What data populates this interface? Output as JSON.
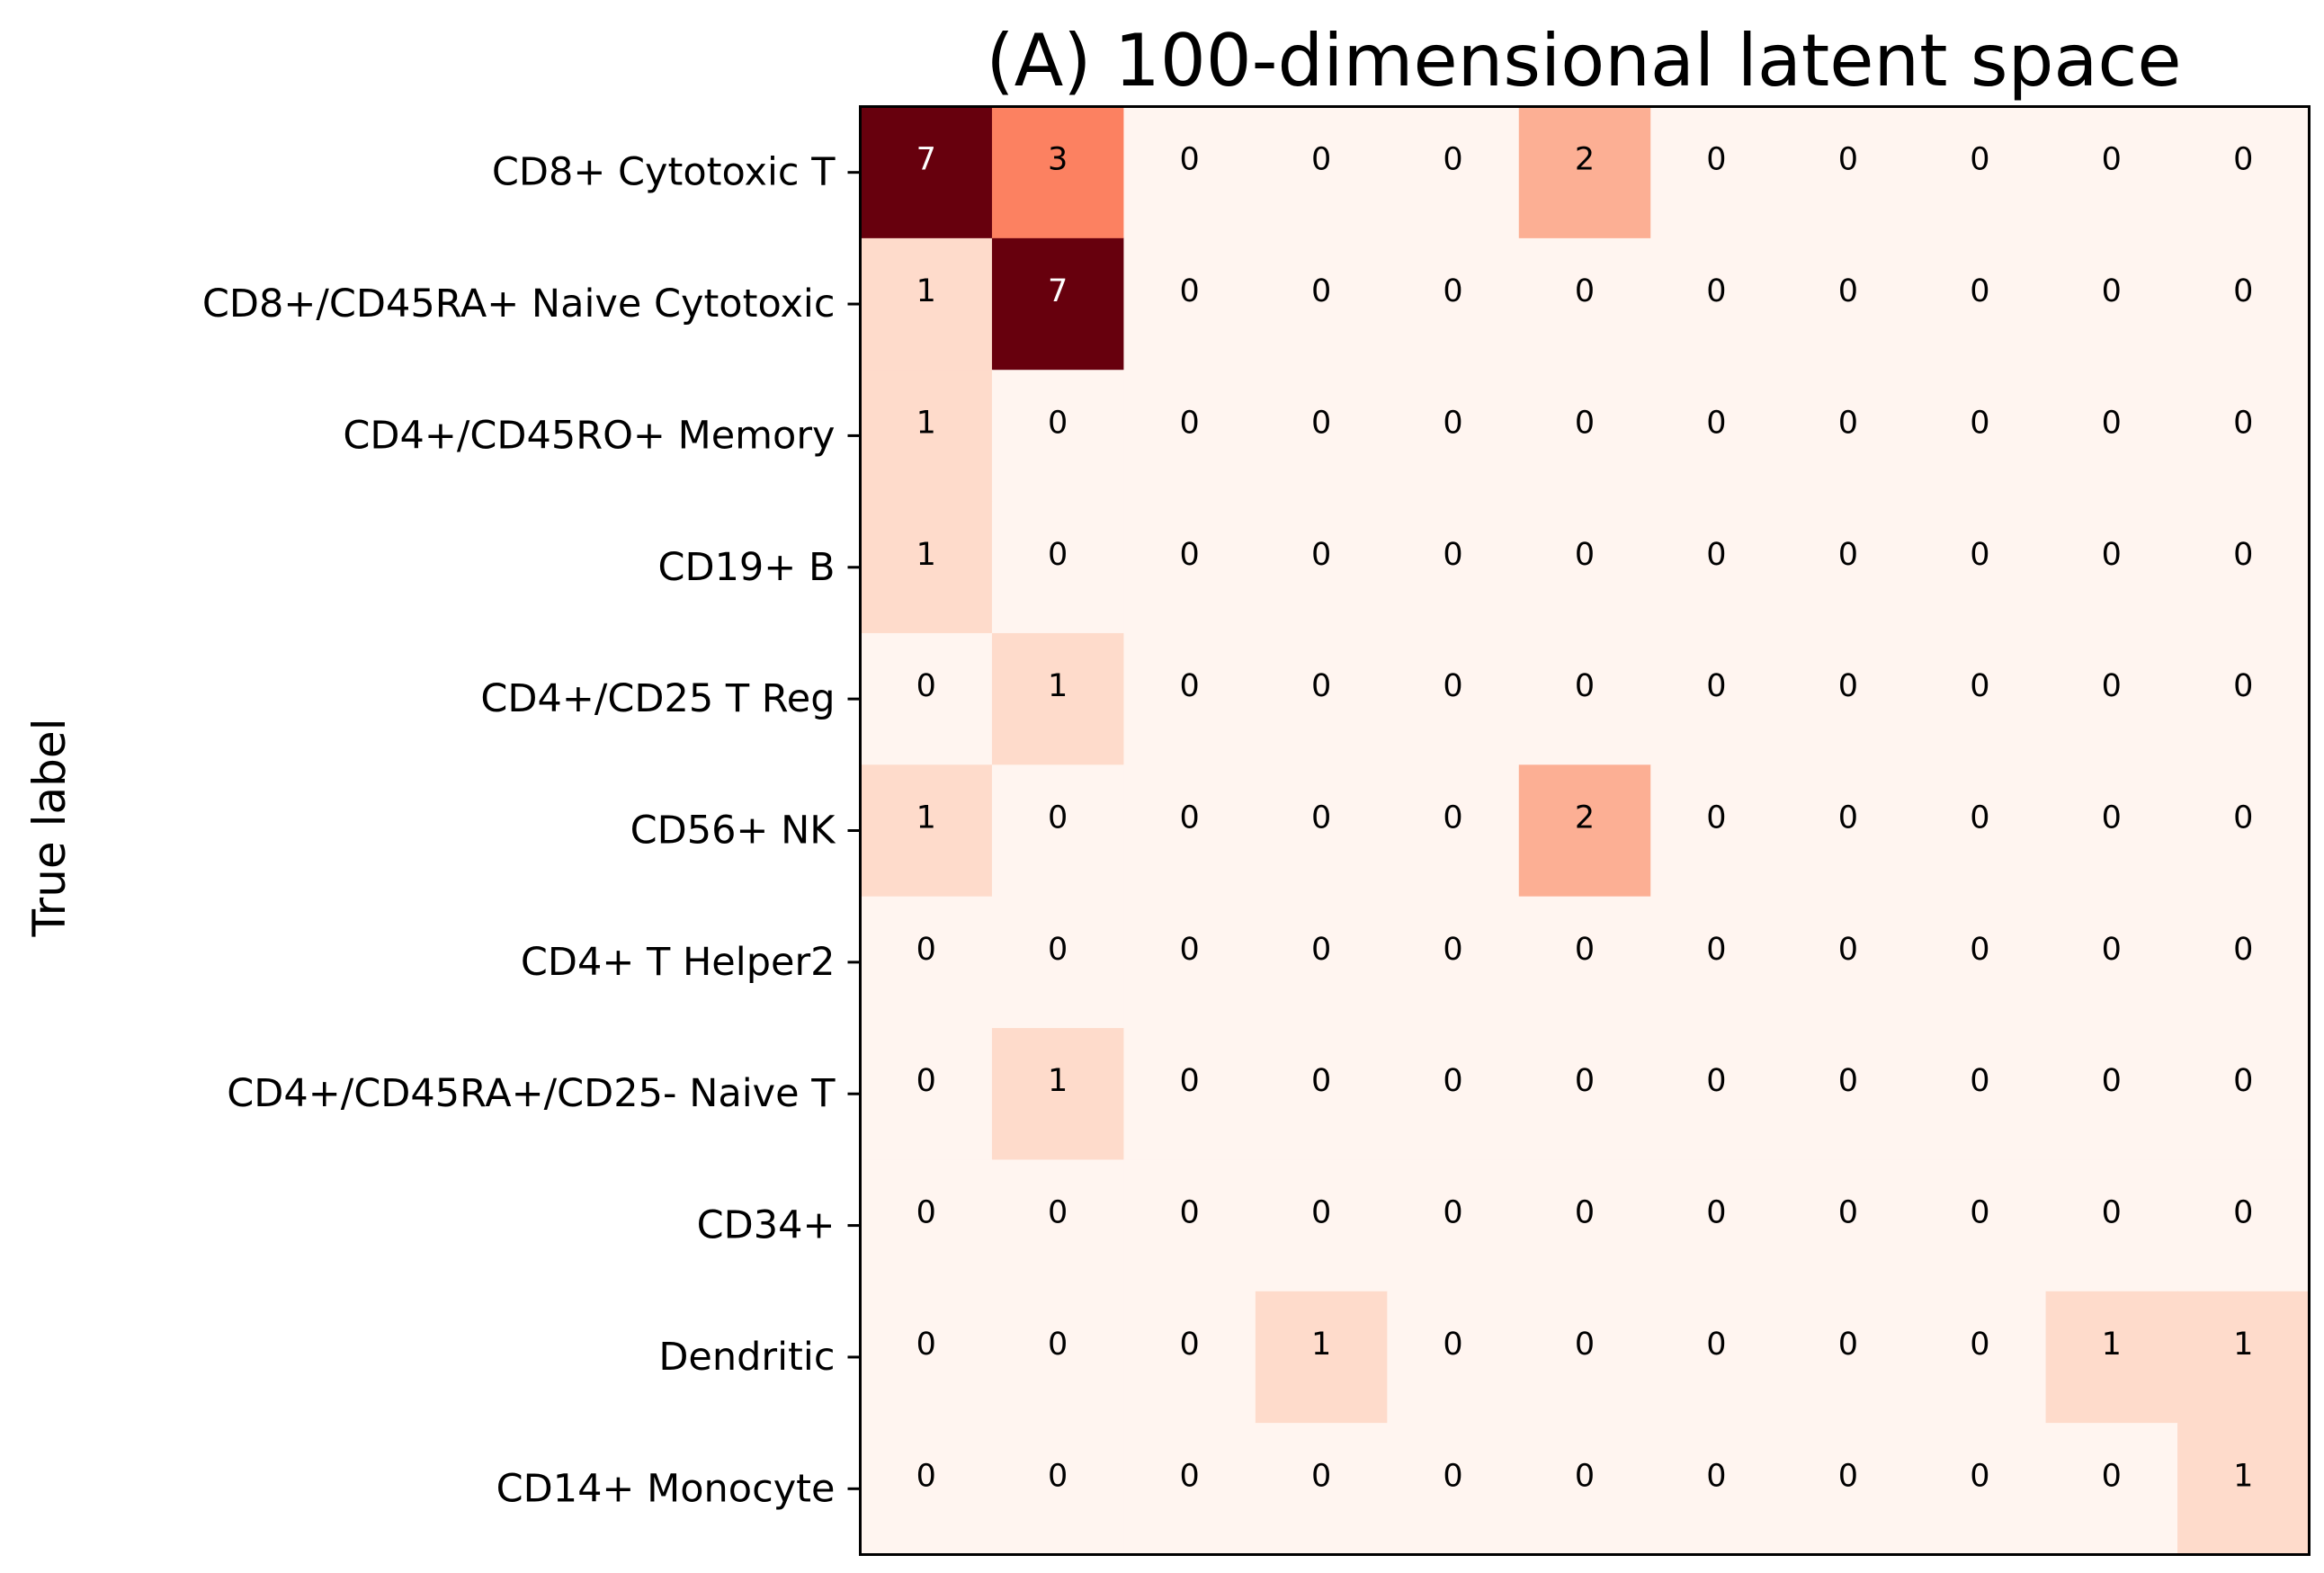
{
  "chart_data": {
    "type": "heatmap",
    "title": "(A) 100-dimensional latent space",
    "ylabel": "True label",
    "xlabel": "",
    "colormap": "Reds",
    "color_range": [
      0,
      7
    ],
    "text_color_light": "#ffffff",
    "text_color_dark": "#000000",
    "rows": [
      "CD8+ Cytotoxic T",
      "CD8+/CD45RA+ Naive Cytotoxic",
      "CD4+/CD45RO+ Memory",
      "CD19+ B",
      "CD4+/CD25 T Reg",
      "CD56+ NK",
      "CD4+ T Helper2",
      "CD4+/CD45RA+/CD25- Naive T",
      "CD34+",
      "Dendritic",
      "CD14+ Monocyte"
    ],
    "columns": 11,
    "values": [
      [
        7,
        3,
        0,
        0,
        0,
        2,
        0,
        0,
        0,
        0,
        0
      ],
      [
        1,
        7,
        0,
        0,
        0,
        0,
        0,
        0,
        0,
        0,
        0
      ],
      [
        1,
        0,
        0,
        0,
        0,
        0,
        0,
        0,
        0,
        0,
        0
      ],
      [
        1,
        0,
        0,
        0,
        0,
        0,
        0,
        0,
        0,
        0,
        0
      ],
      [
        0,
        1,
        0,
        0,
        0,
        0,
        0,
        0,
        0,
        0,
        0
      ],
      [
        1,
        0,
        0,
        0,
        0,
        2,
        0,
        0,
        0,
        0,
        0
      ],
      [
        0,
        0,
        0,
        0,
        0,
        0,
        0,
        0,
        0,
        0,
        0
      ],
      [
        0,
        1,
        0,
        0,
        0,
        0,
        0,
        0,
        0,
        0,
        0
      ],
      [
        0,
        0,
        0,
        0,
        0,
        0,
        0,
        0,
        0,
        0,
        0
      ],
      [
        0,
        0,
        0,
        1,
        0,
        0,
        0,
        0,
        0,
        1,
        1
      ],
      [
        0,
        0,
        0,
        0,
        0,
        0,
        0,
        0,
        0,
        0,
        1
      ]
    ]
  }
}
